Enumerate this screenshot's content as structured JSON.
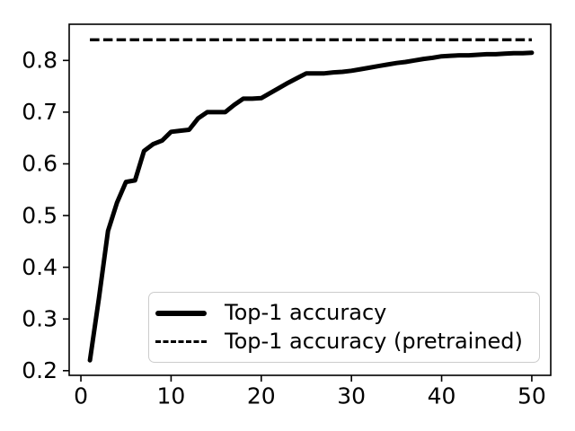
{
  "chart_data": {
    "type": "line",
    "title": "",
    "xlabel": "",
    "ylabel": "",
    "grid": false,
    "legend_position": "lower right",
    "background_color": "#ffffff",
    "axis_color": "#000000",
    "text_color": "#000000",
    "legend_border_color": "#cccccc",
    "xlim": [
      -1.3,
      52.1
    ],
    "ylim": [
      0.191,
      0.87
    ],
    "xticks": [
      0,
      10,
      20,
      30,
      40,
      50
    ],
    "xticklabels": [
      "0",
      "10",
      "20",
      "30",
      "40",
      "50"
    ],
    "yticks": [
      0.2,
      0.3,
      0.4,
      0.5,
      0.6,
      0.7,
      0.8
    ],
    "yticklabels": [
      "0.2",
      "0.3",
      "0.4",
      "0.5",
      "0.6",
      "0.7",
      "0.8"
    ],
    "x": [
      1,
      2,
      3,
      4,
      5,
      6,
      7,
      8,
      9,
      10,
      11,
      12,
      13,
      14,
      15,
      16,
      17,
      18,
      19,
      20,
      21,
      22,
      23,
      24,
      25,
      26,
      27,
      28,
      29,
      30,
      31,
      32,
      33,
      34,
      35,
      36,
      37,
      38,
      39,
      40,
      41,
      42,
      43,
      44,
      45,
      46,
      47,
      48,
      49,
      50
    ],
    "series": [
      {
        "name": "Top-1 accuracy",
        "style": "solid",
        "color": "#000000",
        "line_width": 5,
        "values": [
          0.22,
          0.34,
          0.47,
          0.525,
          0.565,
          0.568,
          0.625,
          0.638,
          0.645,
          0.662,
          0.664,
          0.666,
          0.688,
          0.7,
          0.7,
          0.7,
          0.714,
          0.726,
          0.726,
          0.727,
          0.737,
          0.747,
          0.757,
          0.766,
          0.775,
          0.775,
          0.775,
          0.777,
          0.778,
          0.78,
          0.783,
          0.786,
          0.789,
          0.792,
          0.795,
          0.797,
          0.8,
          0.803,
          0.805,
          0.808,
          0.809,
          0.81,
          0.81,
          0.811,
          0.812,
          0.812,
          0.813,
          0.814,
          0.814,
          0.815
        ]
      },
      {
        "name": "Top-1 accuracy (pretrained)",
        "style": "dashed",
        "color": "#000000",
        "line_width": 3.4,
        "constant_value": 0.84
      }
    ]
  }
}
